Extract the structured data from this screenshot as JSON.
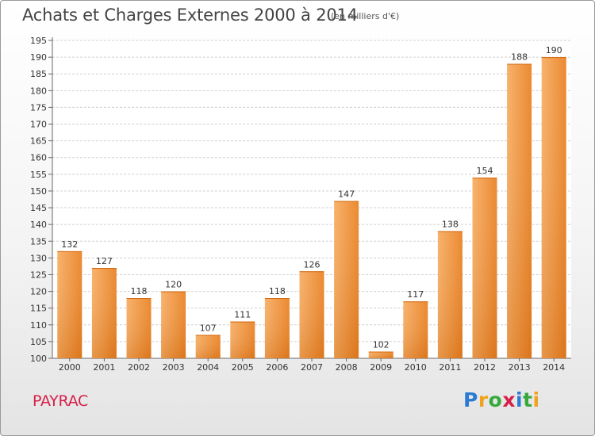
{
  "header": {
    "title": "Achats et Charges Externes 2000 à 2014",
    "subtitle": "(en milliers d'€)"
  },
  "footer": {
    "place": "PAYRAC",
    "logo_text": "Proxiti",
    "logo_colors": [
      "#2b7bd4",
      "#f0a21d",
      "#37a93b",
      "#d6204a",
      "#2b7bd4",
      "#37a93b",
      "#f0a21d"
    ]
  },
  "colors": {
    "bar": "#ef8c2c",
    "bar_light": "#f6a85a",
    "bar_dark": "#d96f14",
    "grid": "#d0d0d0",
    "text": "#333333"
  },
  "chart_data": {
    "type": "bar",
    "title": "Achats et Charges Externes 2000 à 2014",
    "subtitle": "(en milliers d'€)",
    "xlabel": "",
    "ylabel": "",
    "categories": [
      "2000",
      "2001",
      "2002",
      "2003",
      "2004",
      "2005",
      "2006",
      "2007",
      "2008",
      "2009",
      "2010",
      "2011",
      "2012",
      "2013",
      "2014"
    ],
    "values": [
      132,
      127,
      118,
      120,
      107,
      111,
      118,
      126,
      147,
      102,
      117,
      138,
      154,
      188,
      190
    ],
    "ylim": [
      100,
      195
    ],
    "yticks": [
      100,
      105,
      110,
      115,
      120,
      125,
      130,
      135,
      140,
      145,
      150,
      155,
      160,
      165,
      170,
      175,
      180,
      185,
      190,
      195
    ],
    "grid": true,
    "data_labels": true
  }
}
